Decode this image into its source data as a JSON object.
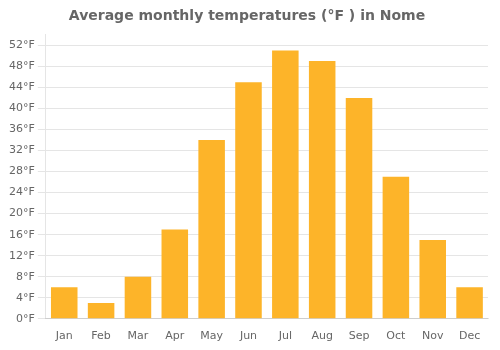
{
  "chart_data": {
    "type": "bar",
    "title": "Average monthly temperatures (°F ) in Nome",
    "categories": [
      "Jan",
      "Feb",
      "Mar",
      "Apr",
      "May",
      "Jun",
      "Jul",
      "Aug",
      "Sep",
      "Oct",
      "Nov",
      "Dec"
    ],
    "values": [
      6,
      3,
      8,
      17,
      34,
      45,
      51,
      49,
      42,
      27,
      15,
      6
    ],
    "color": "#FDB429",
    "ylim": [
      0,
      54
    ],
    "yticks": [
      {
        "value": 0,
        "label": "0°F"
      },
      {
        "value": 4,
        "label": "4°F"
      },
      {
        "value": 8,
        "label": "8°F"
      },
      {
        "value": 12,
        "label": "12°F"
      },
      {
        "value": 16,
        "label": "16°F"
      },
      {
        "value": 20,
        "label": "20°F"
      },
      {
        "value": 24,
        "label": "24°F"
      },
      {
        "value": 28,
        "label": "28°F"
      },
      {
        "value": 32,
        "label": "32°F"
      },
      {
        "value": 36,
        "label": "36°F"
      },
      {
        "value": 40,
        "label": "40°F"
      },
      {
        "value": 44,
        "label": "44°F"
      },
      {
        "value": 48,
        "label": "48°F"
      },
      {
        "value": 52,
        "label": "52°F"
      }
    ],
    "grid": true
  }
}
